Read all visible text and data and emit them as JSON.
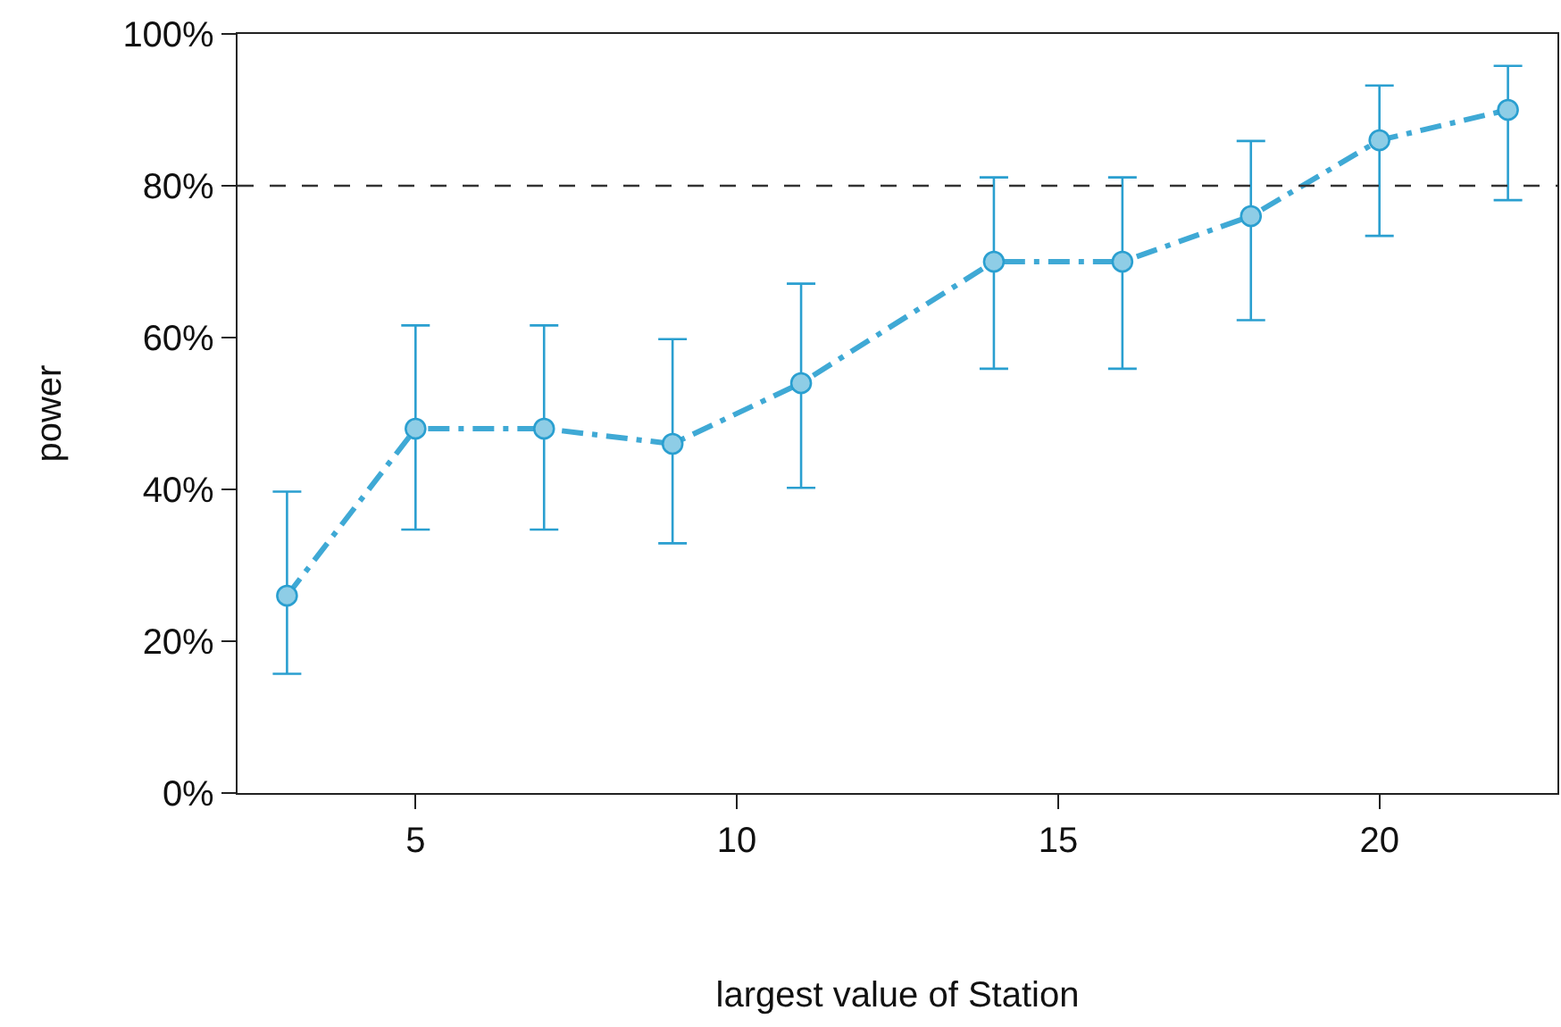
{
  "chart_data": {
    "type": "line",
    "xlabel": "largest value of Station",
    "ylabel": "power",
    "x": [
      3,
      5,
      7,
      9,
      11,
      14,
      16,
      18,
      20,
      22
    ],
    "series": [
      {
        "color": "#3fa9d5",
        "values": [
          26,
          48,
          48,
          46,
          54,
          70,
          70,
          76,
          86,
          90
        ],
        "errors": [
          [
            15.7,
            39.7
          ],
          [
            34.7,
            61.6
          ],
          [
            34.7,
            61.6
          ],
          [
            32.9,
            59.8
          ],
          [
            40.2,
            67.1
          ],
          [
            55.9,
            81.1
          ],
          [
            55.9,
            81.1
          ],
          [
            62.3,
            85.9
          ],
          [
            73.4,
            93.2
          ],
          [
            78.1,
            95.8
          ]
        ]
      }
    ],
    "xlim": [
      2.23,
      22.77
    ],
    "xticks": [
      5,
      10,
      15,
      20
    ],
    "ylim": [
      0,
      100
    ],
    "yticks": [
      {
        "value": 0,
        "label": "0%"
      },
      {
        "value": 20,
        "label": "20%"
      },
      {
        "value": 40,
        "label": "40%"
      },
      {
        "value": 60,
        "label": "60%"
      },
      {
        "value": 80,
        "label": "80%"
      },
      {
        "value": 100,
        "label": "100%"
      }
    ],
    "ref_lines": [
      {
        "axis": "y",
        "value": 80,
        "color": "#333333",
        "line_style": "dashed"
      }
    ],
    "marker": "circle",
    "line_style": "dashed"
  }
}
